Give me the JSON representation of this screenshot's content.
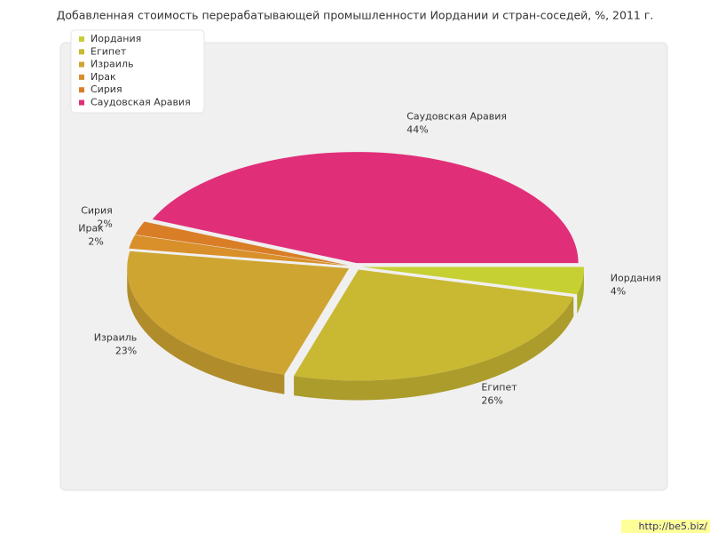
{
  "chart_data": {
    "type": "pie",
    "title": "Добавленная стоимость перерабатывающей промышленности Иордании и стран-соседей, %, 2011 г.",
    "categories": [
      "Иордания",
      "Египет",
      "Израиль",
      "Ирак",
      "Сирия",
      "Саудовская Аравия"
    ],
    "values": [
      4,
      26,
      23,
      2,
      2,
      44
    ],
    "value_labels": [
      "4%",
      "26%",
      "23%",
      "2%",
      "2%",
      "44%"
    ],
    "colors": [
      "#c7d033",
      "#c9b832",
      "#cfa532",
      "#d98f2a",
      "#d97e27",
      "#e02f78"
    ],
    "legend": "upper left"
  },
  "watermark": "http://be5.biz/"
}
